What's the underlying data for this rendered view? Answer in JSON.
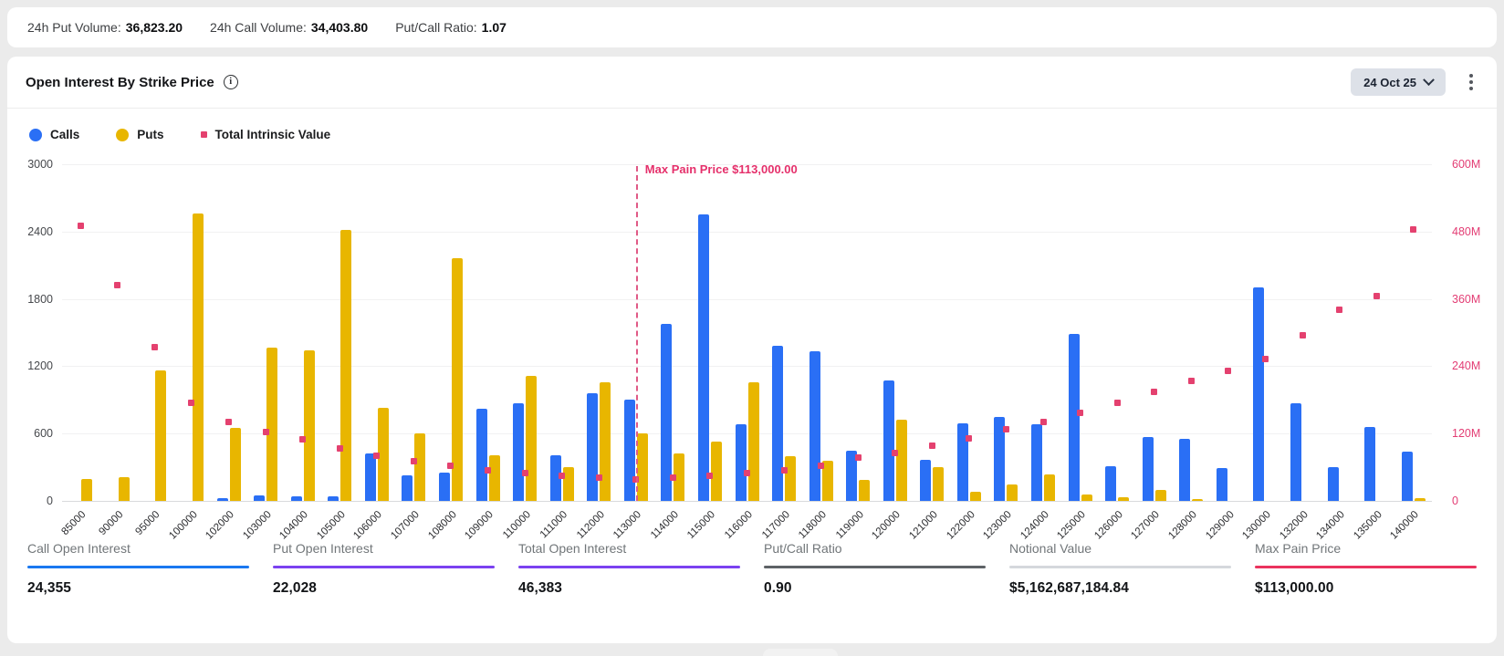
{
  "colors": {
    "calls_blue": "#2a6ff5",
    "puts_yellow": "#e8b600",
    "intrinsic_pink": "#e4416f",
    "max_pain_line": "#e05a86",
    "page_bg": "#ebebeb",
    "card_bg": "#ffffff"
  },
  "top_bar": {
    "stats": [
      {
        "label": "24h Put Volume:",
        "value": "36,823.20"
      },
      {
        "label": "24h Call Volume:",
        "value": "34,403.80"
      },
      {
        "label": "Put/Call Ratio:",
        "value": "1.07"
      }
    ]
  },
  "panel": {
    "title": "Open Interest By Strike Price",
    "date_selector": {
      "label": "24 Oct 25"
    }
  },
  "legend": [
    {
      "label": "Calls",
      "swatch": "circle",
      "color": "#2a6ff5"
    },
    {
      "label": "Puts",
      "swatch": "circle",
      "color": "#e8b600"
    },
    {
      "label": "Total Intrinsic Value",
      "swatch": "square",
      "color": "#e4416f"
    }
  ],
  "chart_data": {
    "type": "bar",
    "title": "Open Interest By Strike Price",
    "grid": "horizontal",
    "categories": [
      "85000",
      "90000",
      "95000",
      "100000",
      "102000",
      "103000",
      "104000",
      "105000",
      "106000",
      "107000",
      "108000",
      "109000",
      "110000",
      "111000",
      "112000",
      "113000",
      "114000",
      "115000",
      "116000",
      "117000",
      "118000",
      "119000",
      "120000",
      "121000",
      "122000",
      "123000",
      "124000",
      "125000",
      "126000",
      "127000",
      "128000",
      "129000",
      "130000",
      "132000",
      "134000",
      "135000",
      "140000"
    ],
    "series": [
      {
        "name": "Calls",
        "type": "bar",
        "axis": "left",
        "color": "#2a6ff5",
        "values": [
          0,
          0,
          0,
          0,
          25,
          50,
          40,
          40,
          420,
          230,
          255,
          820,
          870,
          410,
          960,
          900,
          1580,
          2550,
          680,
          1380,
          1330,
          450,
          1070,
          370,
          690,
          750,
          680,
          1490,
          310,
          570,
          550,
          290,
          1900,
          870,
          300,
          660,
          440
        ]
      },
      {
        "name": "Puts",
        "type": "bar",
        "axis": "left",
        "color": "#e8b600",
        "values": [
          195,
          215,
          1160,
          2560,
          650,
          1370,
          1340,
          2415,
          830,
          600,
          2160,
          410,
          1110,
          300,
          1060,
          600,
          420,
          530,
          1060,
          395,
          360,
          190,
          720,
          300,
          85,
          145,
          235,
          60,
          30,
          95,
          15,
          0,
          0,
          0,
          0,
          0,
          25
        ]
      },
      {
        "name": "Total Intrinsic Value",
        "type": "scatter",
        "axis": "right",
        "color": "#e4416f",
        "values_millions": [
          490,
          385,
          274,
          175,
          141,
          123,
          109,
          93,
          81,
          71,
          62,
          55,
          50,
          45,
          42,
          39,
          42,
          44,
          49,
          54,
          63,
          78,
          86,
          99,
          112,
          128,
          141,
          157,
          175,
          195,
          214,
          232,
          253,
          295,
          341,
          365,
          483
        ]
      }
    ],
    "left_axis": {
      "ticks": [
        0,
        600,
        1200,
        1800,
        2400,
        3000
      ],
      "max": 3000
    },
    "right_axis": {
      "ticks": [
        "0",
        "120M",
        "240M",
        "360M",
        "480M",
        "600M"
      ],
      "max_millions": 600
    },
    "annotation": {
      "text": "Max Pain Price $113,000.00",
      "strike": "113000"
    }
  },
  "summary_stats": [
    {
      "label": "Call Open Interest",
      "value": "24,355",
      "underline": "#1a78f0"
    },
    {
      "label": "Put Open Interest",
      "value": "22,028",
      "underline": "#7b42f0"
    },
    {
      "label": "Total Open Interest",
      "value": "46,383",
      "underline": "#7b42f0"
    },
    {
      "label": "Put/Call Ratio",
      "value": "0.90",
      "underline": "#5e6266"
    },
    {
      "label": "Notional Value",
      "value": "$5,162,687,184.84",
      "underline": "#d5d8dc"
    },
    {
      "label": "Max Pain Price",
      "value": "$113,000.00",
      "underline": "#ea335e"
    }
  ]
}
